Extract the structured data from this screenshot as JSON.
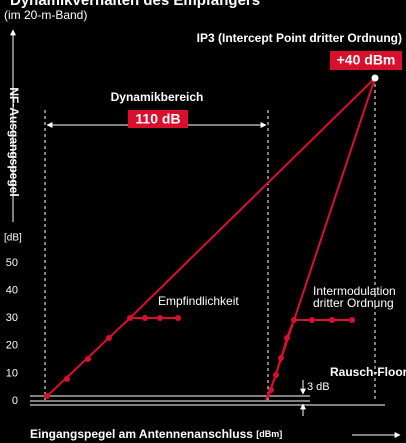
{
  "title": "Dynamikverhalten des Empfängers",
  "subtitle": "(im 20-m-Band)",
  "y_axis": {
    "label": "NF-Ausgangspegel",
    "unit": "[dB]",
    "ticks": [
      "50",
      "40",
      "30",
      "20",
      "10",
      "0"
    ]
  },
  "x_axis": {
    "label": "Eingangspegel am Antennenanschluss",
    "unit": "[dBm]"
  },
  "ip3": {
    "label": "IP3 (Intercept Point dritter Ordnung)",
    "value": "+40 dBm"
  },
  "dynamic_range": {
    "label": "Dynamikbereich",
    "value": "110 dB"
  },
  "sensitivity": "Empfindlichkeit",
  "intermodulation": [
    "Intermodulation",
    "dritter Ordnung"
  ],
  "noise_floor": {
    "label": "Rausch-Floor",
    "value": "3 dB"
  }
}
